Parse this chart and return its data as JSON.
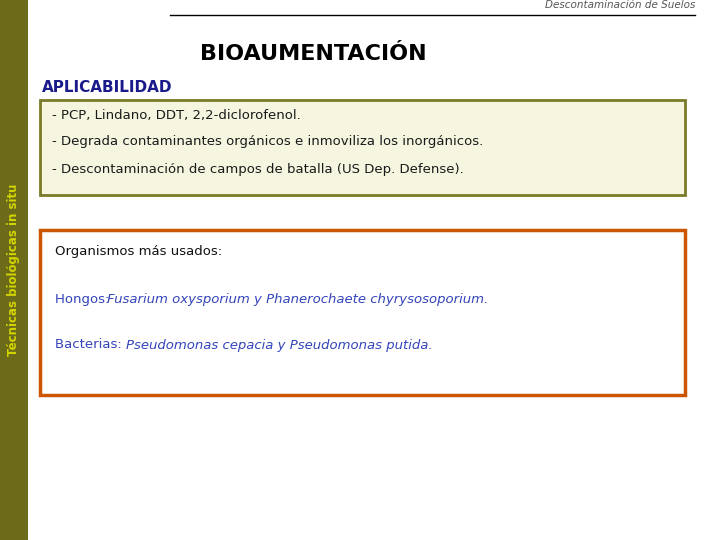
{
  "background_color": "#ffffff",
  "sidebar_color": "#6b6b1a",
  "sidebar_text": "Técnicas biológicas in situ",
  "sidebar_text_color": "#d4d400",
  "header_text": "Descontaminación de Suelos",
  "header_line_color": "#000000",
  "title": "BIOAUMENTACIÓN",
  "title_color": "#000000",
  "section_label": "APLICABILIDAD",
  "section_label_color": "#1a1a8c",
  "box1_border_color": "#7a7a28",
  "box1_bg_color": "#f5f5e0",
  "box1_lines": [
    "- PCP, Lindano, DDT, 2,2-diclorofenol.",
    "- Degrada contaminantes orgánicos e inmoviliza los inorgánicos.",
    "- Descontaminación de campos de batalla (US Dep. Defense)."
  ],
  "box1_text_color": "#1a1a1a",
  "box2_border_color": "#cc5500",
  "box2_bg_color": "#ffffff",
  "box2_label1": "Organismos más usados:",
  "box2_label1_color": "#111111",
  "box2_label2_prefix": "Hongos: ",
  "box2_label2_italic": "Fusarium oxysporium y Phanerochaete chyrysosoporium.",
  "box2_label2_color": "#3344bb",
  "box2_label3_prefix": "Bacterias: ",
  "box2_label3_italic": "Pseudomonas cepacia y Pseudomonas putida.",
  "box2_label3_color": "#3344bb"
}
